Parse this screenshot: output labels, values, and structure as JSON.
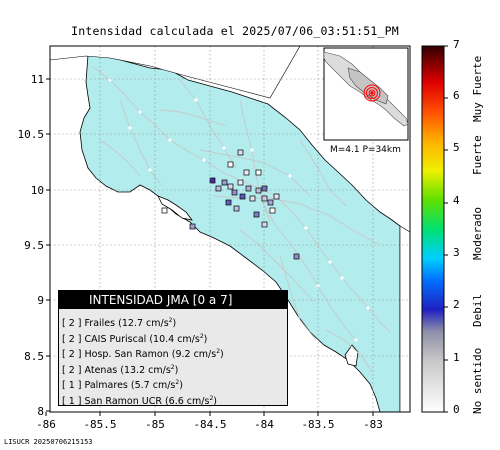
{
  "title": "Intensidad calculada el 2025/07/06_03:51:51_PM",
  "axes": {
    "x_ticks": [
      "-86",
      "-85.5",
      "-85",
      "-84.5",
      "-84",
      "-83.5",
      "-83"
    ],
    "y_ticks": [
      "11",
      "10.5",
      "10",
      "9.5",
      "9",
      "8.5",
      "8"
    ]
  },
  "inset": {
    "label": "M=4.1 P=34km"
  },
  "legend": {
    "title": "INTENSIDAD JMA [0 a 7]",
    "items": [
      {
        "level": "[ 2 ]",
        "station": "Frailes",
        "value": "(12.7 cm/s",
        "unit_exp": "2",
        "close": ")"
      },
      {
        "level": "[ 2 ]",
        "station": "CAIS Puriscal",
        "value": "(10.4 cm/s",
        "unit_exp": "2",
        "close": ")"
      },
      {
        "level": "[ 2 ]",
        "station": "Hosp. San Ramon",
        "value": "(9.2 cm/s",
        "unit_exp": "2",
        "close": ")"
      },
      {
        "level": "[ 2 ]",
        "station": "Atenas",
        "value": "(13.2 cm/s",
        "unit_exp": "2",
        "close": ")"
      },
      {
        "level": "[ 1 ]",
        "station": "Palmares",
        "value": "(5.7 cm/s",
        "unit_exp": "2",
        "close": ")"
      },
      {
        "level": "[ 1 ]",
        "station": "San Ramon UCR",
        "value": "(6.6 cm/s",
        "unit_exp": "2",
        "close": ")"
      }
    ]
  },
  "colorbar": {
    "ticks": [
      "0",
      "1",
      "2",
      "3",
      "4",
      "5",
      "6",
      "7"
    ],
    "labels": [
      "No sentido",
      "Debil",
      "Moderado",
      "Fuerte",
      "Muy Fuerte"
    ]
  },
  "footer": "LISUCR 20250706215153",
  "colors": {
    "land": "#b3ecec",
    "sea": "#ffffff",
    "roads": "#c8c8c8",
    "legend_bg": "#e9e9e9",
    "epicenter": "#ff0000"
  }
}
